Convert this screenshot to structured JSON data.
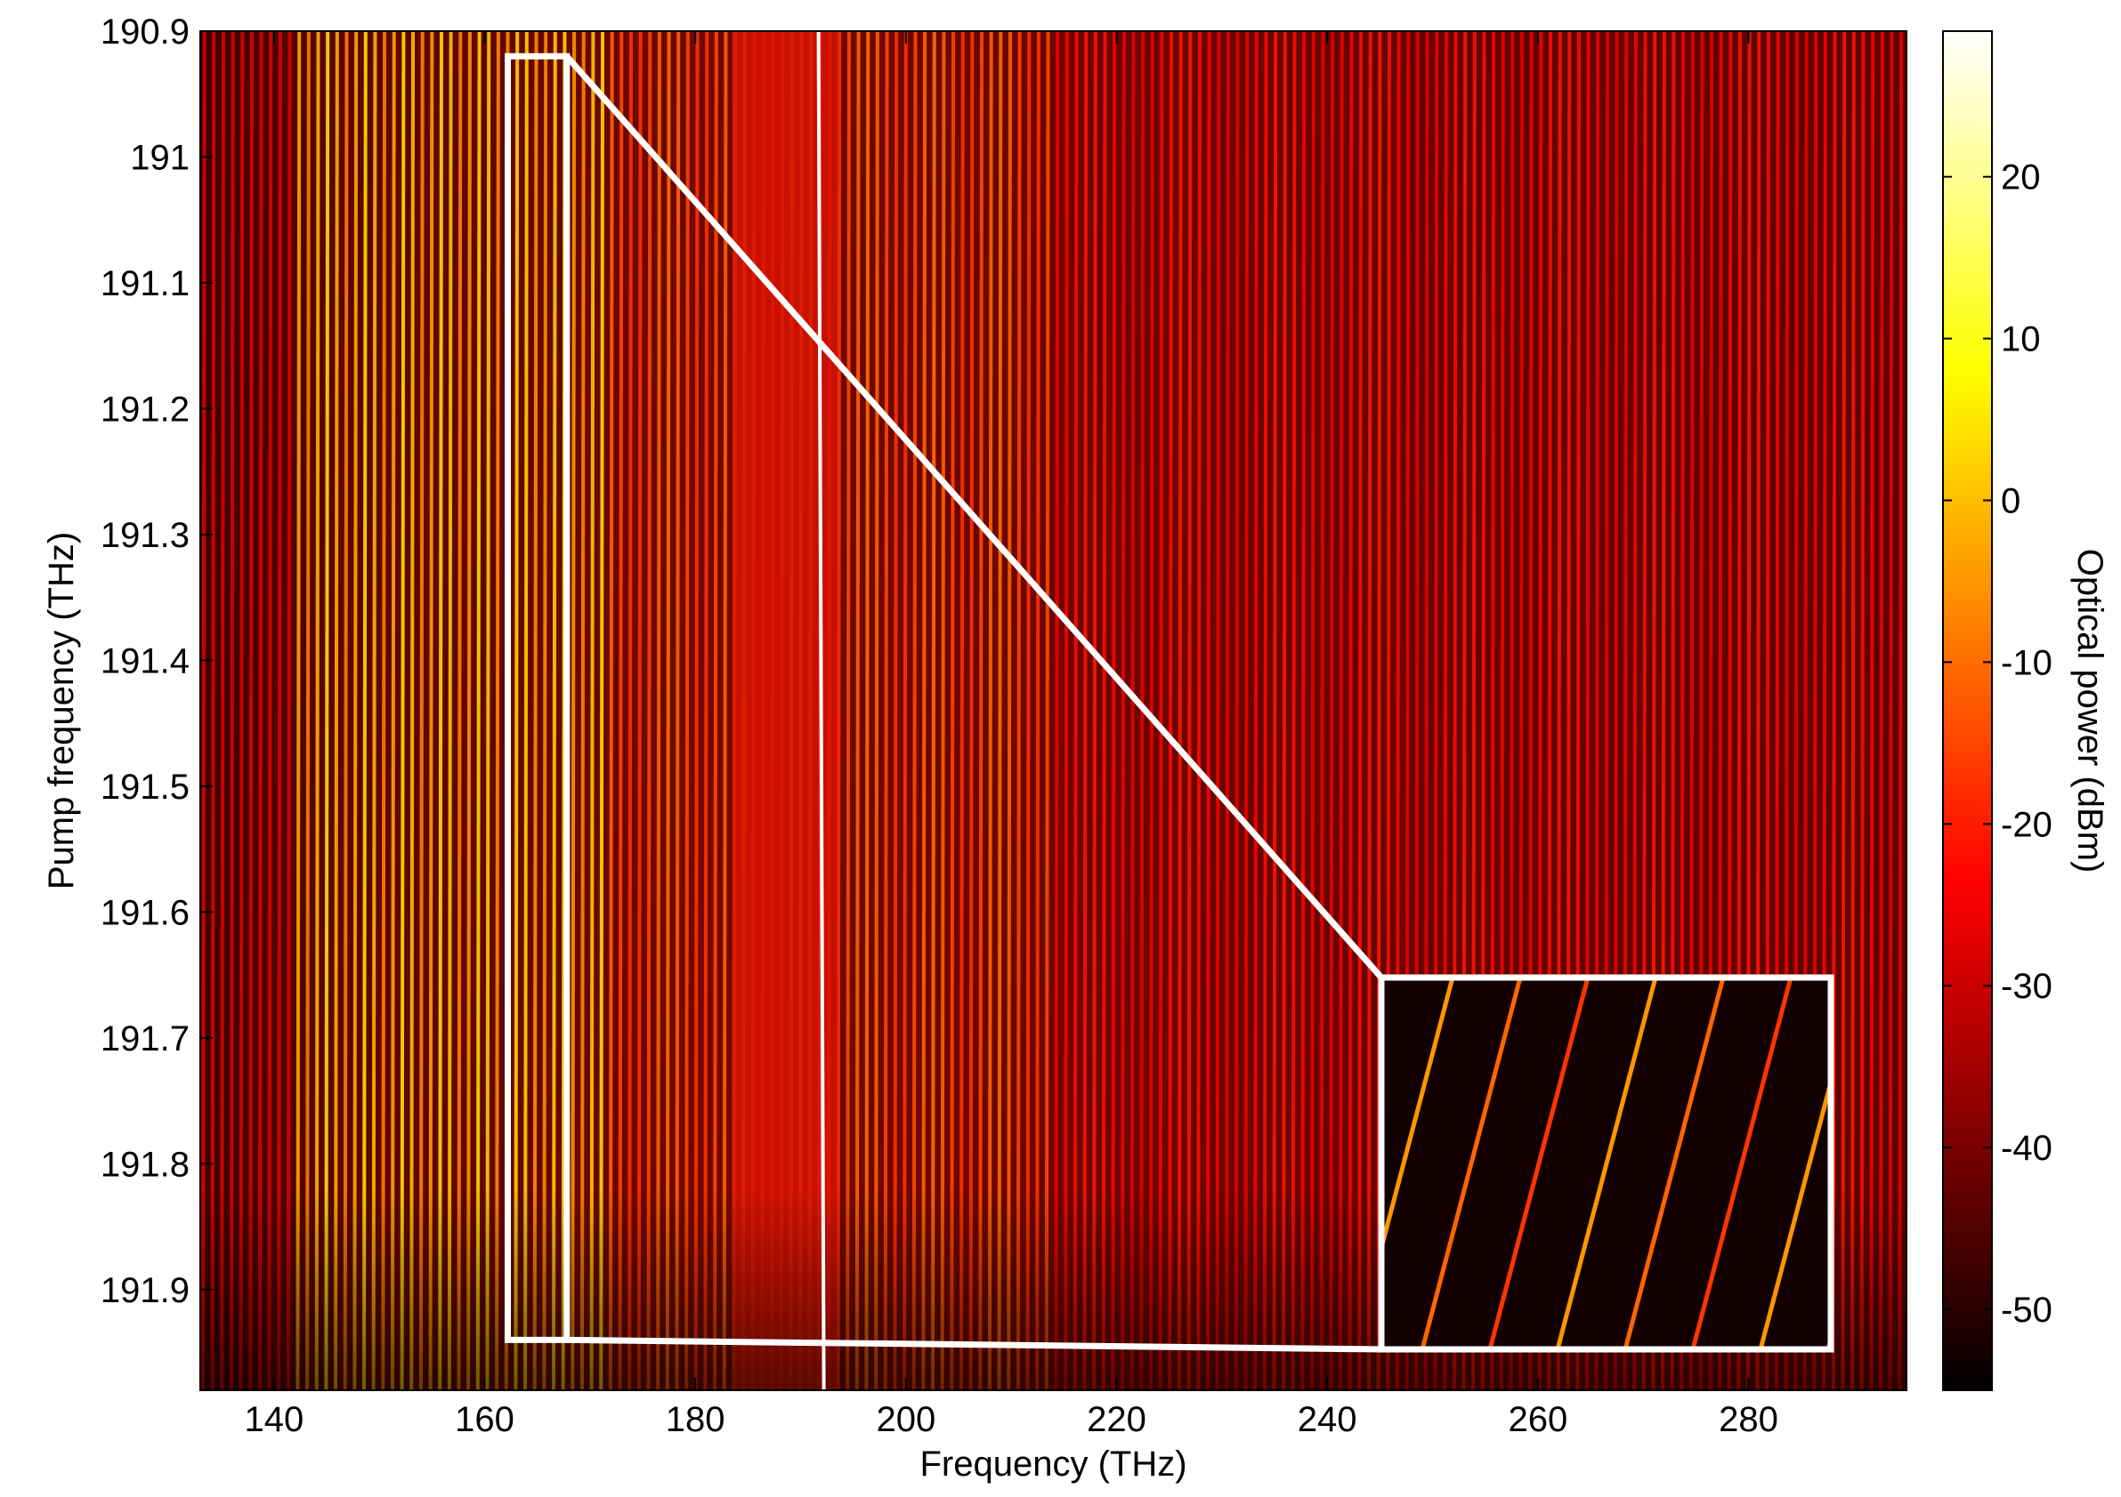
{
  "chart_data": {
    "type": "heatmap",
    "title": "",
    "xlabel": "Frequency (THz)",
    "ylabel": "Pump frequency (THz)",
    "colorbar_label": "Optical power (dBm)",
    "xlim": [
      133,
      295
    ],
    "ylim": [
      191.98,
      190.9
    ],
    "x_ticks": [
      140,
      160,
      180,
      200,
      220,
      240,
      260,
      280
    ],
    "x_tick_labels": [
      "140",
      "160",
      "180",
      "200",
      "220",
      "240",
      "260",
      "280"
    ],
    "y_ticks": [
      190.9,
      191,
      191.1,
      191.2,
      191.3,
      191.4,
      191.5,
      191.6,
      191.7,
      191.8,
      191.9
    ],
    "y_tick_labels": [
      "190.9",
      "191",
      "191.1",
      "191.2",
      "191.3",
      "191.4",
      "191.5",
      "191.6",
      "191.7",
      "191.8",
      "191.9"
    ],
    "colorbar_range": [
      -55,
      29
    ],
    "colorbar_ticks": [
      20,
      10,
      0,
      -10,
      -20,
      -30,
      -40,
      -50
    ],
    "colorbar_tick_labels": [
      "20",
      "10",
      "0",
      "-10",
      "-20",
      "-30",
      "-40",
      "-50"
    ],
    "colormap": "hot",
    "pump_line_x": 191.7,
    "comb_line_spacing_thz": 0.9,
    "bright_band_x": [
      142,
      172
    ],
    "pump_pedestal_x": [
      183.5,
      193.5
    ],
    "power_step_x": 214,
    "inset_region": {
      "x": [
        162.2,
        167.8
      ],
      "y": [
        190.92,
        191.94
      ]
    },
    "grid": false,
    "legend": "none"
  }
}
